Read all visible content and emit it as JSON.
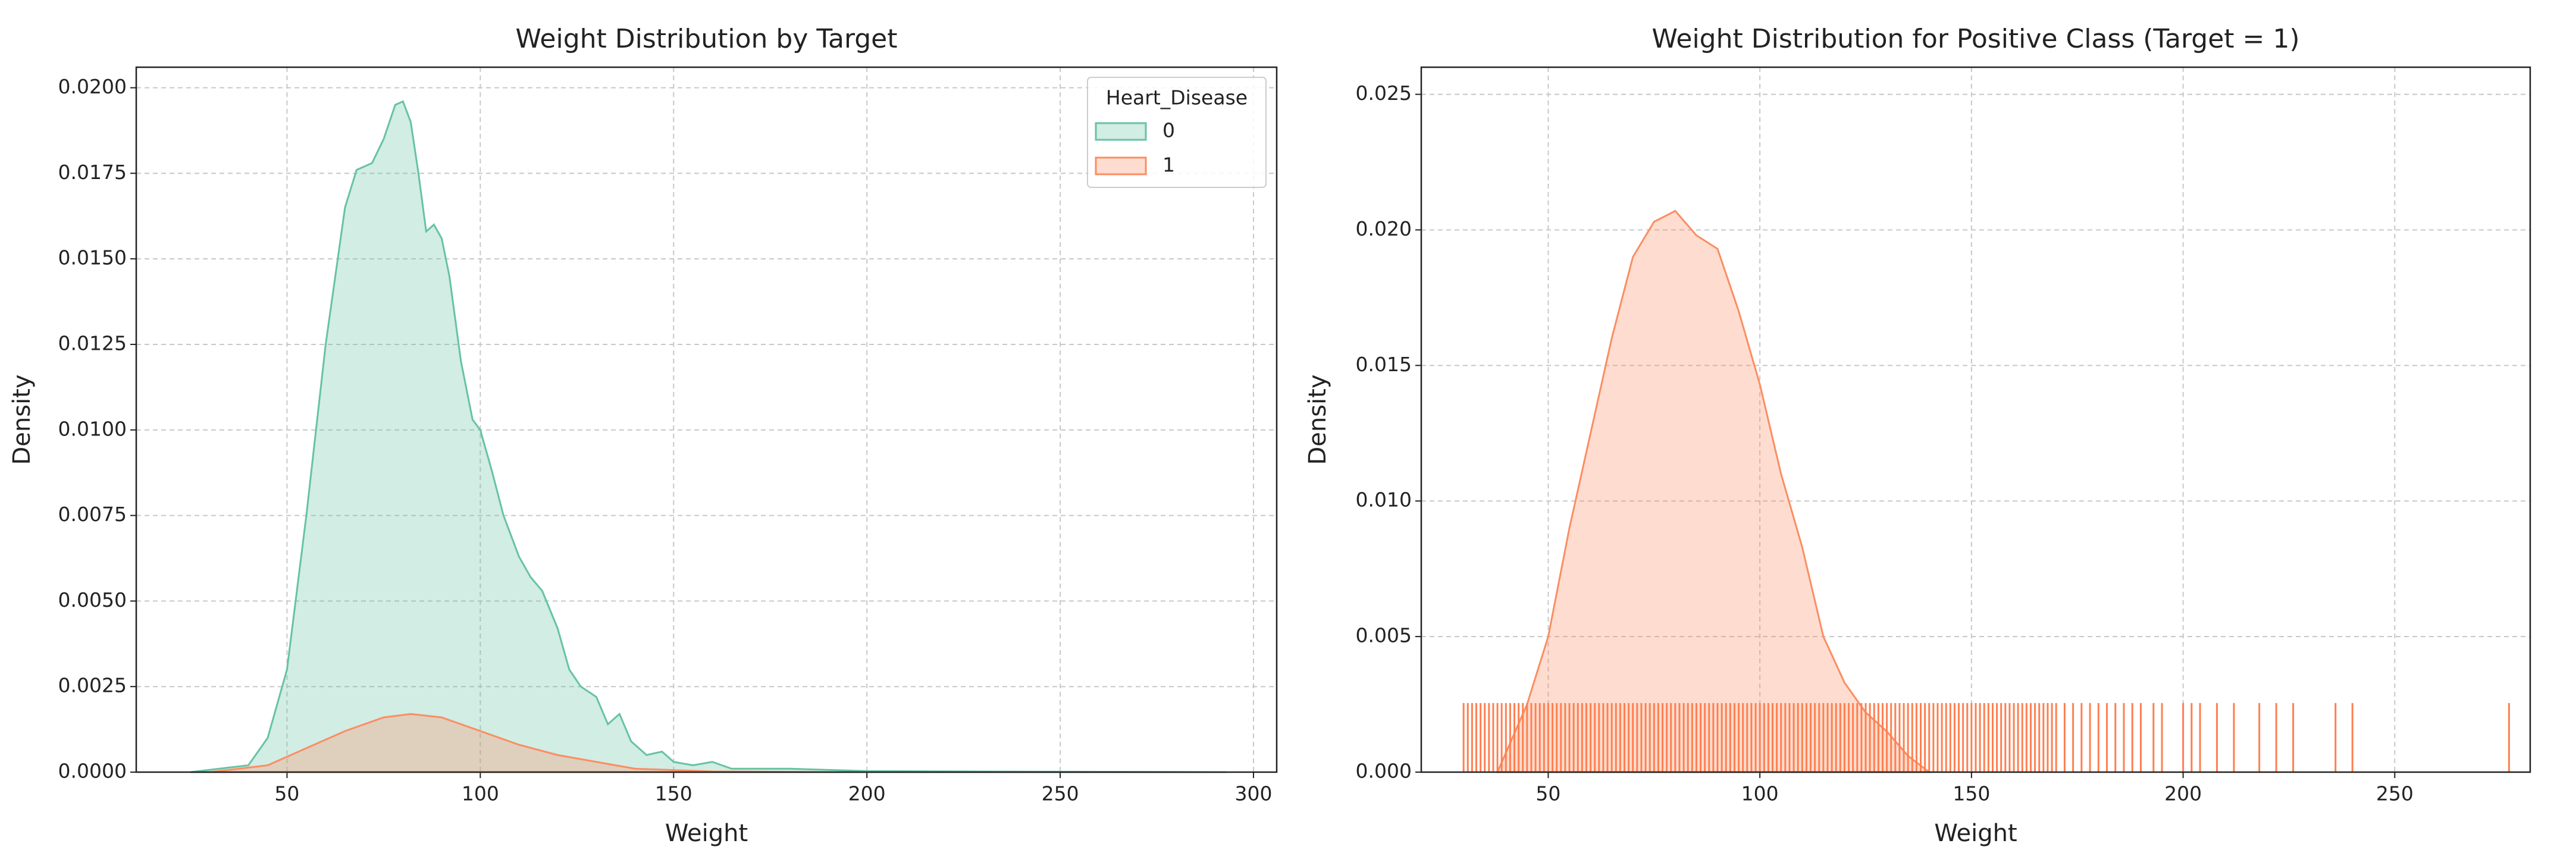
{
  "chart_data": [
    {
      "type": "area",
      "title": "Weight Distribution by Target",
      "xlabel": "Weight",
      "ylabel": "Density",
      "xlim": [
        11,
        306
      ],
      "ylim": [
        0,
        0.0206
      ],
      "xticks": [
        50,
        100,
        150,
        200,
        250,
        300
      ],
      "yticks": [
        {
          "value": 0,
          "label": "0.0000"
        },
        0.0025,
        {
          "value": 0.005,
          "label": "0.0050"
        },
        0.0075,
        {
          "value": 0.01,
          "label": "0.0100"
        },
        0.0125,
        {
          "value": 0.015,
          "label": "0.0150"
        },
        0.0175,
        {
          "value": 0.02,
          "label": "0.0200"
        }
      ],
      "grid": true,
      "legend_title": "Heart_Disease",
      "legend_loc": "upper right",
      "series": [
        {
          "name": "0",
          "color": "#66c2a5",
          "x": [
            25,
            40,
            45,
            50,
            55,
            60,
            65,
            68,
            72,
            75,
            78,
            80,
            82,
            84,
            86,
            88,
            90,
            92,
            95,
            98,
            100,
            103,
            106,
            110,
            113,
            116,
            120,
            123,
            126,
            130,
            133,
            136,
            139,
            143,
            147,
            150,
            155,
            160,
            165,
            180,
            200,
            250,
            293
          ],
          "values": [
            0,
            0.0002,
            0.001,
            0.003,
            0.0075,
            0.0125,
            0.0165,
            0.0176,
            0.0178,
            0.0185,
            0.0195,
            0.0196,
            0.019,
            0.0175,
            0.0158,
            0.016,
            0.0156,
            0.0145,
            0.012,
            0.0103,
            0.01,
            0.0088,
            0.0075,
            0.0063,
            0.0057,
            0.0053,
            0.0042,
            0.003,
            0.0025,
            0.0022,
            0.0014,
            0.0017,
            0.0009,
            0.0005,
            0.0006,
            0.0003,
            0.0002,
            0.0003,
            0.0001,
            0.0001,
            3e-05,
            1e-05,
            0
          ]
        },
        {
          "name": "1",
          "color": "#fc8d62",
          "x": [
            30,
            45,
            55,
            65,
            75,
            82,
            90,
            100,
            110,
            120,
            130,
            140,
            160,
            190
          ],
          "values": [
            0,
            0.0002,
            0.0007,
            0.0012,
            0.0016,
            0.0017,
            0.0016,
            0.0012,
            0.0008,
            0.0005,
            0.0003,
            0.0001,
            2e-05,
            0
          ]
        }
      ]
    },
    {
      "type": "area",
      "title": "Weight Distribution for Positive Class (Target = 1)",
      "xlabel": "Weight",
      "ylabel": "Density",
      "xlim": [
        20,
        282
      ],
      "ylim": [
        0,
        0.026
      ],
      "xticks": [
        50,
        100,
        150,
        200,
        250
      ],
      "yticks": [
        {
          "value": 0,
          "label": "0.000"
        },
        0.005,
        {
          "value": 0.01,
          "label": "0.010"
        },
        0.015,
        {
          "value": 0.02,
          "label": "0.020"
        },
        0.025
      ],
      "grid": true,
      "series": [
        {
          "color": "#fc8d62",
          "x": [
            38,
            45,
            50,
            55,
            60,
            65,
            70,
            75,
            80,
            85,
            90,
            95,
            100,
            105,
            110,
            115,
            120,
            125,
            130,
            135,
            140
          ],
          "values": [
            0,
            0.0025,
            0.005,
            0.009,
            0.0125,
            0.016,
            0.019,
            0.0203,
            0.0207,
            0.0198,
            0.0193,
            0.017,
            0.0143,
            0.011,
            0.0083,
            0.005,
            0.0033,
            0.0022,
            0.0015,
            0.0006,
            0
          ]
        }
      ],
      "rug": {
        "color": "#ff7f50",
        "x": [
          30,
          31,
          32,
          33,
          34,
          35,
          36,
          37,
          38,
          39,
          40,
          41,
          42,
          43,
          44,
          45,
          46,
          47,
          48,
          49,
          50,
          51,
          52,
          53,
          54,
          55,
          56,
          57,
          58,
          59,
          60,
          61,
          62,
          63,
          64,
          65,
          66,
          67,
          68,
          69,
          70,
          71,
          72,
          73,
          74,
          75,
          76,
          77,
          78,
          79,
          80,
          81,
          82,
          83,
          84,
          85,
          86,
          87,
          88,
          89,
          90,
          91,
          92,
          93,
          94,
          95,
          96,
          97,
          98,
          99,
          100,
          101,
          102,
          103,
          104,
          105,
          106,
          107,
          108,
          109,
          110,
          111,
          112,
          113,
          114,
          115,
          116,
          117,
          118,
          119,
          120,
          121,
          122,
          123,
          124,
          125,
          126,
          127,
          128,
          129,
          130,
          131,
          132,
          133,
          134,
          135,
          136,
          137,
          138,
          139,
          140,
          141,
          142,
          143,
          144,
          145,
          146,
          147,
          148,
          149,
          150,
          151,
          152,
          153,
          154,
          155,
          156,
          157,
          158,
          159,
          160,
          161,
          162,
          163,
          164,
          165,
          166,
          167,
          168,
          169,
          170,
          172,
          174,
          176,
          178,
          180,
          182,
          184,
          186,
          188,
          190,
          193,
          195,
          200,
          202,
          204,
          208,
          212,
          218,
          222,
          226,
          236,
          240,
          277
        ]
      }
    }
  ]
}
